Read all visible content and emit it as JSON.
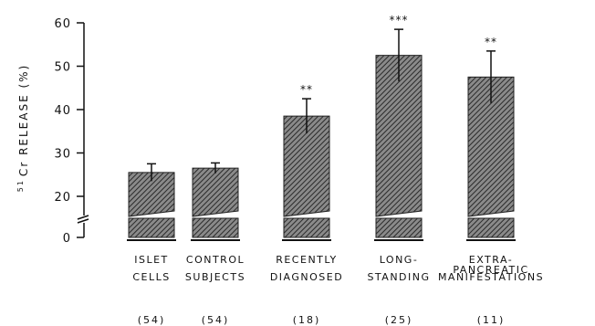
{
  "chart_data": {
    "type": "bar",
    "ylabel": "51Cr RELEASE (%)",
    "ylabel_superscript": "51",
    "ylabel_rest": "Cr RELEASE (%)",
    "ylim": [
      0,
      60
    ],
    "axis_break": true,
    "yticks": [
      {
        "value": 0,
        "label": "0"
      },
      {
        "value": 20,
        "label": "20"
      },
      {
        "value": 30,
        "label": "30"
      },
      {
        "value": 40,
        "label": "40"
      },
      {
        "value": 50,
        "label": "50"
      },
      {
        "value": 60,
        "label": "60"
      }
    ],
    "categories": [
      {
        "line1": "ISLET",
        "line2": "CELLS",
        "n": "(54)"
      },
      {
        "line1": "CONTROL",
        "line2": "SUBJECTS",
        "n": "(54)"
      },
      {
        "line1": "RECENTLY",
        "line2": "DIAGNOSED",
        "n": "(18)"
      },
      {
        "line1": "LONG-",
        "line2": "STANDING",
        "n": "(25)"
      },
      {
        "line1": "EXTRA-PANCREATIC",
        "line2": "MANIFESTATIONS",
        "n": "(11)"
      }
    ],
    "values": [
      25.5,
      26.5,
      38.5,
      52.5,
      47.5
    ],
    "error_upper": [
      27.5,
      27.7,
      42.5,
      58.5,
      53.5
    ],
    "error_lower": [
      23.5,
      25.3,
      34.5,
      46.5,
      41.5
    ],
    "significance": [
      "",
      "",
      "**",
      "***",
      "**"
    ],
    "bar_fill": "#555555",
    "axis_color": "#111111"
  }
}
